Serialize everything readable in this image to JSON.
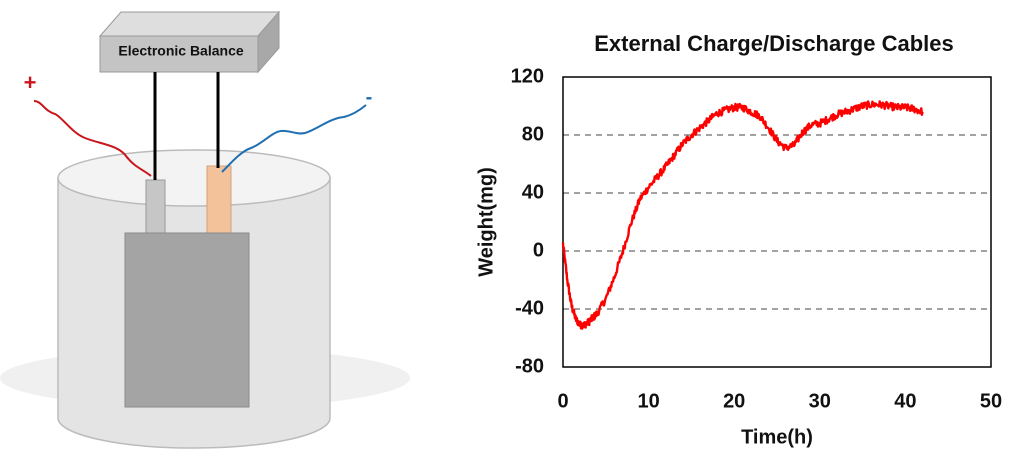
{
  "apparatus": {
    "balance_label": "Electronic Balance",
    "plus_sign": "+",
    "minus_sign": "-",
    "colors": {
      "positive_lead": "#c8171c",
      "negative_lead": "#1f6fb2",
      "negative_tab": "#f4c29a",
      "positive_tab": "#c6c6c6",
      "cell_body": "#a4a4a4",
      "container": "#e4e4e4",
      "balance": "#bdbdbd",
      "balance_wire": "#000000"
    }
  },
  "chart_data": {
    "type": "line",
    "title": "External Charge/Discharge Cables",
    "xlabel": "Time(h)",
    "ylabel": "Weight(mg)",
    "xlim": [
      0,
      50
    ],
    "ylim": [
      -80,
      120
    ],
    "xticks": [
      0,
      10,
      20,
      30,
      40,
      50
    ],
    "yticks": [
      -80,
      -40,
      0,
      40,
      80,
      120
    ],
    "grid": "horizontal-dashed",
    "series": [
      {
        "name": "Weight",
        "color": "#ff0000",
        "x": [
          0,
          0.5,
          1,
          1.5,
          2,
          2.5,
          3,
          3.5,
          4,
          5,
          6,
          7,
          8,
          9,
          10,
          11,
          12,
          13,
          14,
          15,
          16,
          17,
          18,
          19,
          20,
          21,
          22,
          23,
          24,
          25,
          26,
          27,
          28,
          29,
          30,
          31,
          32,
          33,
          34,
          35,
          36,
          37,
          38,
          39,
          40,
          41,
          42
        ],
        "y": [
          5,
          -20,
          -38,
          -47,
          -51,
          -51,
          -49,
          -46,
          -43,
          -33,
          -18,
          0,
          20,
          36,
          44,
          51,
          58,
          66,
          74,
          80,
          85,
          90,
          95,
          97,
          99,
          99,
          96,
          93,
          85,
          76,
          71,
          73,
          82,
          87,
          88,
          91,
          94,
          96,
          98,
          100,
          101,
          101,
          100,
          99,
          99,
          98,
          96
        ]
      }
    ]
  }
}
